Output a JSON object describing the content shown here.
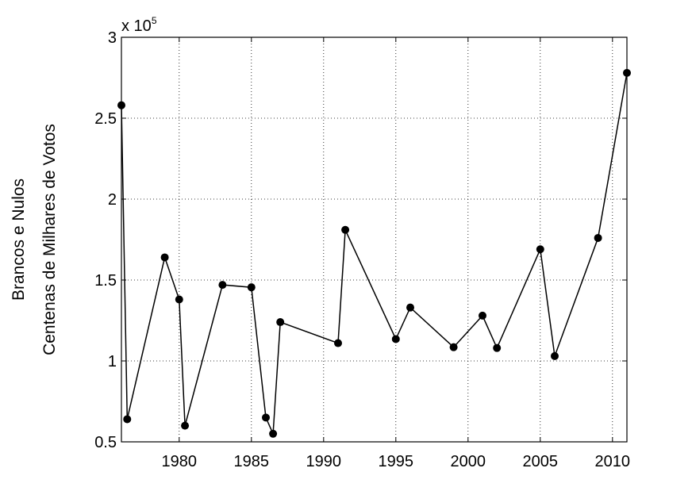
{
  "chart_data": {
    "type": "line",
    "title": "",
    "ylabel_lines": [
      "Brancos e Nulos",
      "Centenas de Milhares de Votos"
    ],
    "xlabel": "",
    "y_exponent_label": {
      "base": "x 10",
      "exponent": "5"
    },
    "xlim": [
      1976,
      2011
    ],
    "ylim": [
      50000,
      300000
    ],
    "x_ticks": [
      1980,
      1985,
      1990,
      1995,
      2000,
      2005,
      2010
    ],
    "y_ticks": [
      50000,
      100000,
      150000,
      200000,
      250000,
      300000
    ],
    "y_tick_labels": [
      "0.5",
      "1",
      "1.5",
      "2",
      "2.5",
      "3"
    ],
    "grid": true,
    "series": [
      {
        "color": "#000000",
        "marker": "filled-circle",
        "x": [
          1976.0,
          1976.4,
          1979.0,
          1980.0,
          1980.4,
          1983.0,
          1985.0,
          1986.0,
          1986.5,
          1987.0,
          1991.0,
          1991.5,
          1995.0,
          1996.0,
          1999.0,
          2001.0,
          2002.0,
          2005.0,
          2006.0,
          2009.0,
          2011.0
        ],
        "y": [
          258000,
          64000,
          164000,
          138000,
          60000,
          147000,
          145500,
          65000,
          55000,
          124000,
          111000,
          181000,
          113500,
          133000,
          108500,
          128000,
          108000,
          169000,
          103000,
          176000,
          278000
        ]
      }
    ]
  }
}
